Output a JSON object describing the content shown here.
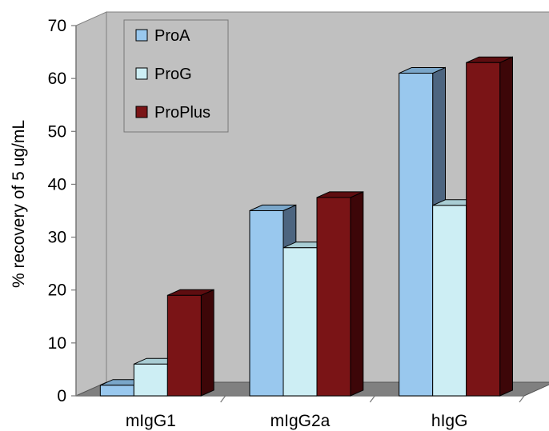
{
  "chart_data": {
    "type": "bar",
    "title": "",
    "xlabel": "",
    "ylabel": "% recovery of 5 ug/mL",
    "ylim": [
      0,
      70
    ],
    "yticks": [
      0,
      10,
      20,
      30,
      40,
      50,
      60,
      70
    ],
    "categories": [
      "mIgG1",
      "mIgG2a",
      "hIgG"
    ],
    "series": [
      {
        "name": "ProA",
        "values": [
          2,
          35,
          61
        ]
      },
      {
        "name": "ProG",
        "values": [
          6,
          28,
          36
        ]
      },
      {
        "name": "ProPlus",
        "values": [
          19,
          37.5,
          63
        ]
      }
    ],
    "legend_position": "top-left",
    "grid": false,
    "style": "3d-clustered-column"
  },
  "colors": {
    "wall": "#c0c0c0",
    "floor": "#808080",
    "series": [
      {
        "front": "#99c8ee",
        "top": "#7aa6c9",
        "side": "#4d6580"
      },
      {
        "front": "#cdeef4",
        "top": "#a9cdd4",
        "side": "#7a9ba0"
      },
      {
        "front": "#7a1416",
        "top": "#5e0d10",
        "side": "#3d0608"
      }
    ]
  }
}
